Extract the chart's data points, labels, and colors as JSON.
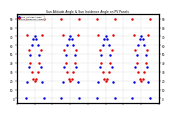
{
  "title": "Sun Altitude Angle & Sun Incidence Angle on PV Panels",
  "legend_altitude": "Sun Altitude Angle",
  "legend_incidence": "Sun Incidence Angle",
  "color_altitude": "#0000dd",
  "color_incidence": "#dd0000",
  "ylim": [
    -5,
    95
  ],
  "yticks": [
    0,
    10,
    20,
    30,
    40,
    50,
    60,
    70,
    80,
    90
  ],
  "ytick_labels": [
    "0",
    "10.",
    "20.",
    "30.",
    "40.",
    "50.",
    "60.",
    "70.",
    "80.",
    "90."
  ],
  "background": "#ffffff",
  "grid_color": "#aaaaaa",
  "n_days": 4,
  "hours_per_day": 24,
  "sunrise_hour": 6,
  "sunset_hour": 18,
  "max_altitude": 70,
  "marker_size": 1.5
}
